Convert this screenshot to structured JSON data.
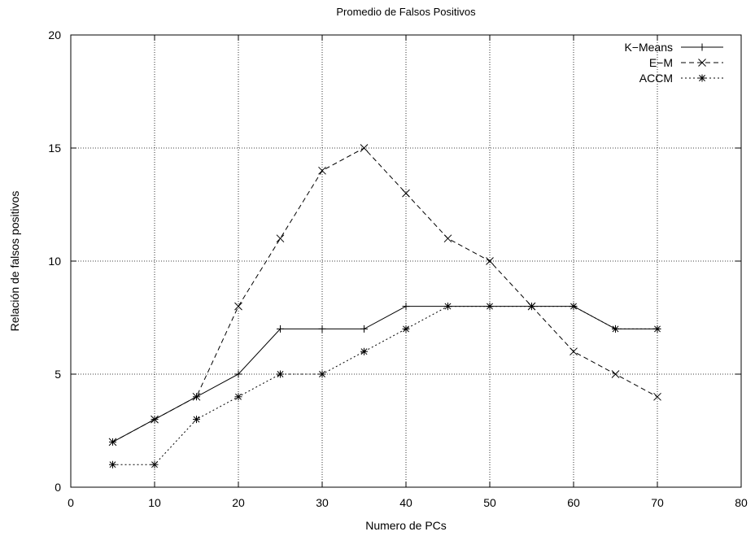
{
  "chart_data": {
    "type": "line",
    "title": "Promedio de Falsos Positivos",
    "xlabel": "Numero de PCs",
    "ylabel": "Relación de falsos positivos",
    "xlim": [
      0,
      80
    ],
    "ylim": [
      0,
      20
    ],
    "xticks": [
      0,
      10,
      20,
      30,
      40,
      50,
      60,
      70,
      80
    ],
    "yticks": [
      0,
      5,
      10,
      15,
      20
    ],
    "grid": true,
    "legend_position": "top-right",
    "x": [
      5,
      10,
      15,
      20,
      25,
      30,
      35,
      40,
      45,
      50,
      55,
      60,
      65,
      70
    ],
    "series": [
      {
        "name": "K−Means",
        "marker": "plus",
        "dash": "solid",
        "values": [
          2,
          3,
          4,
          5,
          7,
          7,
          7,
          8,
          8,
          8,
          8,
          8,
          7,
          7
        ]
      },
      {
        "name": "E−M",
        "marker": "cross",
        "dash": "dashed",
        "values": [
          2,
          3,
          4,
          8,
          11,
          14,
          15,
          13,
          11,
          10,
          8,
          6,
          5,
          4
        ]
      },
      {
        "name": "ACCM",
        "marker": "star",
        "dash": "dotted",
        "values": [
          1,
          1,
          3,
          4,
          5,
          5,
          6,
          7,
          8,
          8,
          8,
          8,
          7,
          7
        ]
      }
    ],
    "colors": {
      "line": "#000000",
      "grid": "#000000",
      "background": "#ffffff"
    }
  }
}
